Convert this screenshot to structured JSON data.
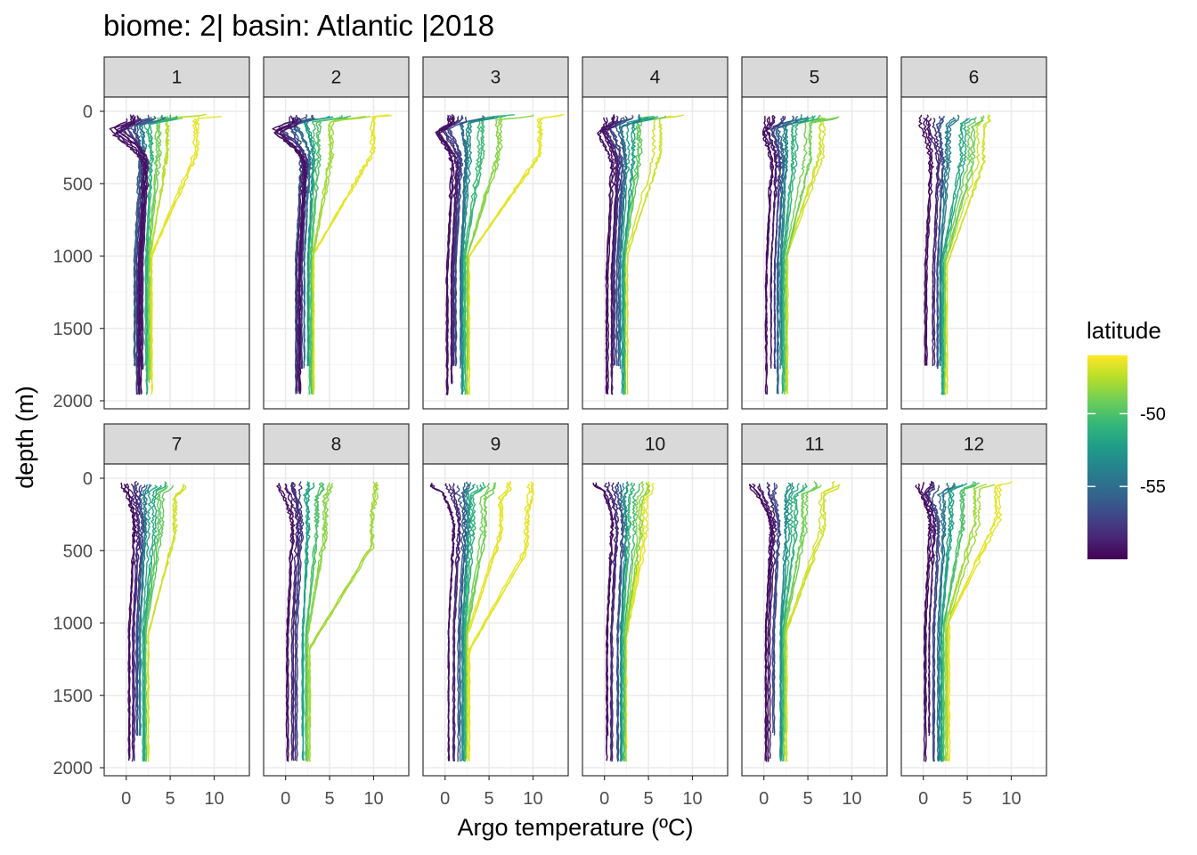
{
  "chart_data": {
    "type": "line",
    "title": "biome: 2| basin: Atlantic |2018",
    "xlabel": "Argo temperature (ºC)",
    "ylabel": "depth (m)",
    "xlim": [
      -2.5,
      14
    ],
    "ylim": [
      2000,
      0
    ],
    "y_reversed": true,
    "x_ticks": [
      0,
      5,
      10
    ],
    "x_tick_labels": [
      "0",
      "5",
      "10"
    ],
    "y_ticks": [
      0,
      500,
      1000,
      1500,
      2000
    ],
    "y_tick_labels": [
      "0",
      "500",
      "1000",
      "1500",
      "2000"
    ],
    "grid": true,
    "facet_by": "month",
    "facets": [
      {
        "label": "1",
        "profiles": [
          {
            "lat": -59.5,
            "surface": 0.5,
            "mix": 120,
            "dip": -1.5,
            "deep": 1.6,
            "bottom": 1970
          },
          {
            "lat": -59,
            "surface": 0.8,
            "mix": 150,
            "dip": -1.2,
            "deep": 1.4,
            "bottom": 1950
          },
          {
            "lat": -58.5,
            "surface": 1.2,
            "mix": 130,
            "dip": -0.8,
            "deep": 1.8,
            "bottom": 1800
          },
          {
            "lat": -57.5,
            "surface": 2.0,
            "mix": 110,
            "dip": 0.2,
            "deep": 1.3,
            "bottom": 1960
          },
          {
            "lat": -56,
            "surface": 3.0,
            "mix": 90,
            "dip": 1.0,
            "deep": 1.0,
            "bottom": 1780
          },
          {
            "lat": -54,
            "surface": 4.0,
            "mix": 80,
            "dip": 1.5,
            "deep": 1.5,
            "bottom": 1770
          },
          {
            "lat": -51,
            "surface": 5.5,
            "mix": 70,
            "dip": 2.5,
            "deep": 2.3,
            "bottom": 1960
          },
          {
            "lat": -49,
            "surface": 7.0,
            "mix": 60,
            "dip": 3.5,
            "deep": 2.5,
            "bottom": 1880
          },
          {
            "lat": -47.5,
            "surface": 9.0,
            "mix": 40,
            "dip": 4.5,
            "deep": 2.7,
            "bottom": 1860
          },
          {
            "lat": -46.5,
            "surface": 12.0,
            "mix": 40,
            "dip": 8.0,
            "deep": 2.9,
            "bottom": 1960
          }
        ]
      },
      {
        "label": "2",
        "profiles": [
          {
            "lat": -59.5,
            "surface": 0.6,
            "mix": 140,
            "dip": -1.4,
            "deep": 1.6,
            "bottom": 1970
          },
          {
            "lat": -59,
            "surface": 1.0,
            "mix": 130,
            "dip": -1.0,
            "deep": 1.4,
            "bottom": 1950
          },
          {
            "lat": -58,
            "surface": 1.5,
            "mix": 120,
            "dip": -0.5,
            "deep": 1.9,
            "bottom": 1780
          },
          {
            "lat": -56.5,
            "surface": 2.5,
            "mix": 100,
            "dip": 0.5,
            "deep": 1.2,
            "bottom": 1960
          },
          {
            "lat": -55,
            "surface": 3.5,
            "mix": 90,
            "dip": 1.2,
            "deep": 2.2,
            "bottom": 1780
          },
          {
            "lat": -52.5,
            "surface": 5.0,
            "mix": 70,
            "dip": 2.0,
            "deep": 2.5,
            "bottom": 1780
          },
          {
            "lat": -50,
            "surface": 7.0,
            "mix": 60,
            "dip": 3.5,
            "deep": 2.8,
            "bottom": 1960
          },
          {
            "lat": -48,
            "surface": 9.0,
            "mix": 50,
            "dip": 5.0,
            "deep": 3.0,
            "bottom": 1960
          },
          {
            "lat": -46.5,
            "surface": 13.5,
            "mix": 40,
            "dip": 10.0,
            "deep": 3.2,
            "bottom": 1960
          }
        ]
      },
      {
        "label": "3",
        "profiles": [
          {
            "lat": -59.5,
            "surface": 0.5,
            "mix": 150,
            "dip": -1.0,
            "deep": 0.2,
            "bottom": 1970
          },
          {
            "lat": -59,
            "surface": 0.9,
            "mix": 140,
            "dip": -0.8,
            "deep": 0.8,
            "bottom": 1900
          },
          {
            "lat": -58,
            "surface": 1.5,
            "mix": 130,
            "dip": -0.3,
            "deep": 1.0,
            "bottom": 1780
          },
          {
            "lat": -57,
            "surface": 2.5,
            "mix": 110,
            "dip": 0.5,
            "deep": 1.3,
            "bottom": 1780
          },
          {
            "lat": -55,
            "surface": 4.0,
            "mix": 90,
            "dip": 1.5,
            "deep": 1.7,
            "bottom": 1780
          },
          {
            "lat": -53,
            "surface": 5.5,
            "mix": 80,
            "dip": 2.5,
            "deep": 1.9,
            "bottom": 1960
          },
          {
            "lat": -50.5,
            "surface": 7.5,
            "mix": 60,
            "dip": 4.0,
            "deep": 2.2,
            "bottom": 1960
          },
          {
            "lat": -48.5,
            "surface": 10.0,
            "mix": 50,
            "dip": 6.0,
            "deep": 2.5,
            "bottom": 1960
          },
          {
            "lat": -46.5,
            "surface": 13.5,
            "mix": 40,
            "dip": 11.0,
            "deep": 2.8,
            "bottom": 1960
          }
        ]
      },
      {
        "label": "4",
        "profiles": [
          {
            "lat": -59.5,
            "surface": 0.5,
            "mix": 150,
            "dip": -0.5,
            "deep": 0.3,
            "bottom": 1970
          },
          {
            "lat": -59,
            "surface": 0.9,
            "mix": 140,
            "dip": -0.3,
            "deep": 0.8,
            "bottom": 1960
          },
          {
            "lat": -58,
            "surface": 1.6,
            "mix": 120,
            "dip": 0.2,
            "deep": 1.1,
            "bottom": 1780
          },
          {
            "lat": -56.5,
            "surface": 2.8,
            "mix": 100,
            "dip": 1.0,
            "deep": 1.5,
            "bottom": 1780
          },
          {
            "lat": -54.5,
            "surface": 4.0,
            "mix": 90,
            "dip": 1.8,
            "deep": 1.8,
            "bottom": 1780
          },
          {
            "lat": -52,
            "surface": 5.5,
            "mix": 70,
            "dip": 3.0,
            "deep": 2.1,
            "bottom": 1960
          },
          {
            "lat": -49.5,
            "surface": 7.0,
            "mix": 60,
            "dip": 4.0,
            "deep": 2.3,
            "bottom": 1960
          },
          {
            "lat": -47,
            "surface": 9.5,
            "mix": 50,
            "dip": 6.0,
            "deep": 2.5,
            "bottom": 1960
          }
        ]
      },
      {
        "label": "5",
        "profiles": [
          {
            "lat": -59.5,
            "surface": 0.5,
            "mix": 150,
            "dip": 0.0,
            "deep": 0.3,
            "bottom": 1970
          },
          {
            "lat": -59,
            "surface": 1.0,
            "mix": 140,
            "dip": 0.3,
            "deep": 0.8,
            "bottom": 1780
          },
          {
            "lat": -57.5,
            "surface": 2.0,
            "mix": 120,
            "dip": 0.8,
            "deep": 1.2,
            "bottom": 1780
          },
          {
            "lat": -55.5,
            "surface": 3.5,
            "mix": 100,
            "dip": 1.5,
            "deep": 1.6,
            "bottom": 1960
          },
          {
            "lat": -53.5,
            "surface": 4.5,
            "mix": 90,
            "dip": 2.2,
            "deep": 1.9,
            "bottom": 1780
          },
          {
            "lat": -51,
            "surface": 6.0,
            "mix": 80,
            "dip": 3.5,
            "deep": 2.2,
            "bottom": 1960
          },
          {
            "lat": -49,
            "surface": 8.0,
            "mix": 70,
            "dip": 5.0,
            "deep": 2.4,
            "bottom": 1960
          },
          {
            "lat": -47,
            "surface": 10.0,
            "mix": 60,
            "dip": 6.5,
            "deep": 2.6,
            "bottom": 1960
          }
        ]
      },
      {
        "label": "6",
        "profiles": [
          {
            "lat": -59.5,
            "surface": 0.2,
            "mix": 130,
            "dip": 0.2,
            "deep": 0.3,
            "bottom": 1780
          },
          {
            "lat": -58.5,
            "surface": 1.0,
            "mix": 120,
            "dip": 1.0,
            "deep": 1.2,
            "bottom": 1780
          },
          {
            "lat": -56.5,
            "surface": 2.5,
            "mix": 110,
            "dip": 2.0,
            "deep": 1.7,
            "bottom": 1780
          },
          {
            "lat": -54,
            "surface": 4.0,
            "mix": 100,
            "dip": 3.0,
            "deep": 2.0,
            "bottom": 1780
          },
          {
            "lat": -51.5,
            "surface": 5.5,
            "mix": 100,
            "dip": 4.5,
            "deep": 2.2,
            "bottom": 1960
          },
          {
            "lat": -49,
            "surface": 6.5,
            "mix": 110,
            "dip": 5.5,
            "deep": 2.4,
            "bottom": 1960
          },
          {
            "lat": -47,
            "surface": 7.0,
            "mix": 120,
            "dip": 6.5,
            "deep": 2.6,
            "bottom": 1960
          }
        ]
      },
      {
        "label": "7",
        "profiles": [
          {
            "lat": -59.5,
            "surface": -0.5,
            "mix": 110,
            "dip": 0.0,
            "deep": 0.3,
            "bottom": 1960
          },
          {
            "lat": -58.5,
            "surface": 0.5,
            "mix": 100,
            "dip": 0.8,
            "deep": 0.8,
            "bottom": 1960
          },
          {
            "lat": -57,
            "surface": 1.5,
            "mix": 100,
            "dip": 1.2,
            "deep": 1.2,
            "bottom": 1780
          },
          {
            "lat": -54,
            "surface": 2.8,
            "mix": 100,
            "dip": 2.2,
            "deep": 1.6,
            "bottom": 1780
          },
          {
            "lat": -51.5,
            "surface": 4.0,
            "mix": 110,
            "dip": 3.0,
            "deep": 2.0,
            "bottom": 1960
          },
          {
            "lat": -49.5,
            "surface": 5.0,
            "mix": 120,
            "dip": 4.0,
            "deep": 2.2,
            "bottom": 1960
          },
          {
            "lat": -47,
            "surface": 6.5,
            "mix": 130,
            "dip": 5.5,
            "deep": 2.5,
            "bottom": 1960
          }
        ]
      },
      {
        "label": "8",
        "profiles": [
          {
            "lat": -59.5,
            "surface": -0.5,
            "mix": 120,
            "dip": 0.0,
            "deep": 0.2,
            "bottom": 1960
          },
          {
            "lat": -58.5,
            "surface": 0.5,
            "mix": 110,
            "dip": 0.8,
            "deep": 0.8,
            "bottom": 1960
          },
          {
            "lat": -57.5,
            "surface": 1.2,
            "mix": 100,
            "dip": 1.2,
            "deep": 1.2,
            "bottom": 1960
          },
          {
            "lat": -52,
            "surface": 3.0,
            "mix": 120,
            "dip": 2.5,
            "deep": 2.0,
            "bottom": 1960
          },
          {
            "lat": -50,
            "surface": 4.0,
            "mix": 130,
            "dip": 3.5,
            "deep": 2.3,
            "bottom": 1960
          },
          {
            "lat": -48.5,
            "surface": 5.0,
            "mix": 140,
            "dip": 4.5,
            "deep": 2.5,
            "bottom": 1960
          },
          {
            "lat": -48,
            "surface": 10.5,
            "mix": 220,
            "dip": 10.0,
            "deep": 2.8,
            "bottom": 1960
          }
        ]
      },
      {
        "label": "9",
        "profiles": [
          {
            "lat": -59.5,
            "surface": -1.0,
            "mix": 100,
            "dip": 0.0,
            "deep": 0.5,
            "bottom": 1960
          },
          {
            "lat": -58.5,
            "surface": 0.5,
            "mix": 90,
            "dip": 0.8,
            "deep": 1.0,
            "bottom": 1960
          },
          {
            "lat": -56,
            "surface": 2.0,
            "mix": 100,
            "dip": 1.8,
            "deep": 1.6,
            "bottom": 1960
          },
          {
            "lat": -53,
            "surface": 3.0,
            "mix": 110,
            "dip": 2.5,
            "deep": 2.0,
            "bottom": 1960
          },
          {
            "lat": -51,
            "surface": 4.0,
            "mix": 120,
            "dip": 3.0,
            "deep": 2.2,
            "bottom": 1960
          },
          {
            "lat": -49,
            "surface": 5.5,
            "mix": 130,
            "dip": 4.5,
            "deep": 2.4,
            "bottom": 1960
          },
          {
            "lat": -46.5,
            "surface": 7.5,
            "mix": 140,
            "dip": 6.5,
            "deep": 2.6,
            "bottom": 1960
          },
          {
            "lat": -46.5,
            "surface": 10.0,
            "mix": 240,
            "dip": 9.5,
            "deep": 2.8,
            "bottom": 1960
          }
        ]
      },
      {
        "label": "10",
        "profiles": [
          {
            "lat": -59.5,
            "surface": -1.0,
            "mix": 90,
            "dip": 0.0,
            "deep": 0.3,
            "bottom": 1960
          },
          {
            "lat": -58.5,
            "surface": 0.5,
            "mix": 100,
            "dip": 0.8,
            "deep": 0.8,
            "bottom": 1960
          },
          {
            "lat": -56.5,
            "surface": 1.5,
            "mix": 110,
            "dip": 1.5,
            "deep": 1.5,
            "bottom": 1960
          },
          {
            "lat": -53,
            "surface": 2.5,
            "mix": 120,
            "dip": 2.2,
            "deep": 1.9,
            "bottom": 1960
          },
          {
            "lat": -50.5,
            "surface": 3.5,
            "mix": 130,
            "dip": 3.0,
            "deep": 2.1,
            "bottom": 1960
          },
          {
            "lat": -48.5,
            "surface": 4.5,
            "mix": 140,
            "dip": 3.8,
            "deep": 2.3,
            "bottom": 1960
          },
          {
            "lat": -46.5,
            "surface": 5.5,
            "mix": 160,
            "dip": 4.8,
            "deep": 2.5,
            "bottom": 1960
          }
        ]
      },
      {
        "label": "11",
        "profiles": [
          {
            "lat": -59.5,
            "surface": -1.0,
            "mix": 100,
            "dip": -0.5,
            "deep": 0.3,
            "bottom": 1960
          },
          {
            "lat": -59,
            "surface": 0.0,
            "mix": 110,
            "dip": 0.2,
            "deep": 0.6,
            "bottom": 1960
          },
          {
            "lat": -57,
            "surface": 1.0,
            "mix": 120,
            "dip": 1.0,
            "deep": 1.1,
            "bottom": 1780
          },
          {
            "lat": -53,
            "surface": 3.0,
            "mix": 110,
            "dip": 2.5,
            "deep": 1.9,
            "bottom": 1960
          },
          {
            "lat": -51,
            "surface": 4.5,
            "mix": 110,
            "dip": 3.5,
            "deep": 2.1,
            "bottom": 1960
          },
          {
            "lat": -49,
            "surface": 6.0,
            "mix": 100,
            "dip": 4.5,
            "deep": 2.3,
            "bottom": 1960
          },
          {
            "lat": -47,
            "surface": 8.0,
            "mix": 100,
            "dip": 6.5,
            "deep": 2.5,
            "bottom": 1960
          }
        ]
      },
      {
        "label": "12",
        "profiles": [
          {
            "lat": -59.5,
            "surface": -0.5,
            "mix": 80,
            "dip": -0.5,
            "deep": 0.2,
            "bottom": 1960
          },
          {
            "lat": -59,
            "surface": 0.5,
            "mix": 100,
            "dip": 0.0,
            "deep": 0.6,
            "bottom": 1780
          },
          {
            "lat": -57,
            "surface": 1.5,
            "mix": 110,
            "dip": 0.8,
            "deep": 1.2,
            "bottom": 1960
          },
          {
            "lat": -54.5,
            "surface": 3.0,
            "mix": 100,
            "dip": 2.0,
            "deep": 1.7,
            "bottom": 1960
          },
          {
            "lat": -52,
            "surface": 4.5,
            "mix": 90,
            "dip": 3.0,
            "deep": 2.0,
            "bottom": 1960
          },
          {
            "lat": -50,
            "surface": 6.0,
            "mix": 80,
            "dip": 4.5,
            "deep": 2.3,
            "bottom": 1960
          },
          {
            "lat": -48,
            "surface": 7.5,
            "mix": 60,
            "dip": 6.0,
            "deep": 2.6,
            "bottom": 1960
          },
          {
            "lat": -46.5,
            "surface": 10.5,
            "mix": 40,
            "dip": 8.5,
            "deep": 2.9,
            "bottom": 1960
          }
        ]
      }
    ],
    "legend": {
      "title": "latitude",
      "position": "right",
      "range": [
        -60,
        -46
      ],
      "ticks": [
        -50,
        -55
      ],
      "tick_labels": [
        "-50",
        "-55"
      ],
      "colormap": "viridis",
      "colors": [
        "#440154",
        "#482878",
        "#3e4a89",
        "#31688e",
        "#26828e",
        "#1f9e89",
        "#35b779",
        "#6ece58",
        "#b5de2b",
        "#fde725"
      ]
    }
  },
  "colors": {
    "strip_background": "#d9d9d9",
    "panel_border": "#333333",
    "grid_major": "#ebebeb",
    "grid_minor": "#f5f5f5"
  }
}
